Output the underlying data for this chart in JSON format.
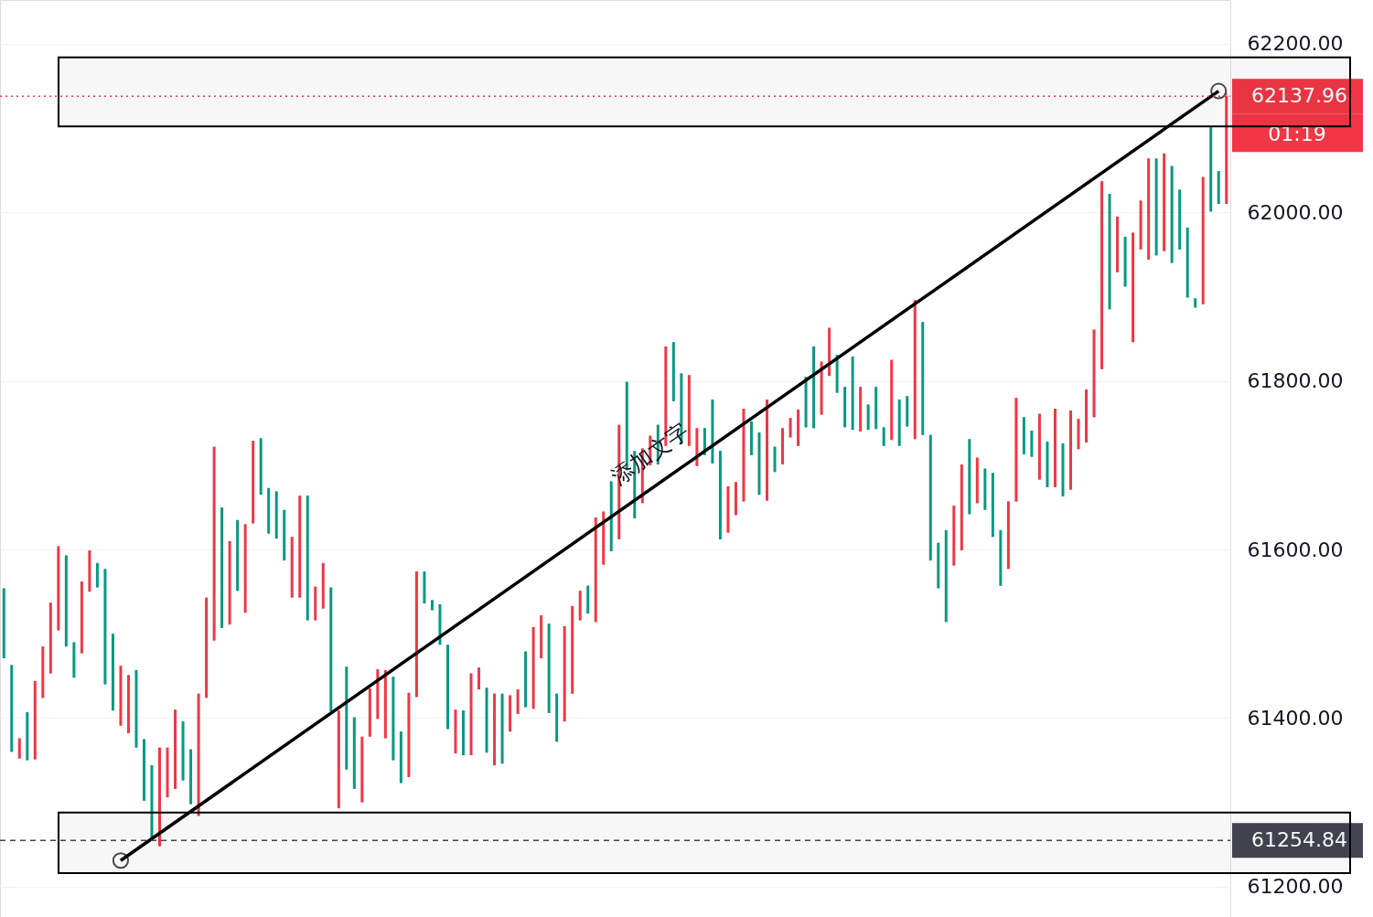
{
  "chart_data": {
    "type": "candlestick",
    "categories": [
      null,
      null,
      null,
      null,
      null,
      null,
      null,
      null,
      null,
      null,
      null,
      null,
      null,
      null,
      null,
      null,
      null,
      null,
      null,
      null,
      null,
      null,
      null,
      null,
      null,
      null,
      null,
      null,
      null,
      null,
      null,
      null,
      null,
      null,
      null,
      null,
      null,
      null,
      null,
      null,
      null,
      null,
      null,
      null,
      null,
      null,
      null,
      null,
      null,
      null,
      null,
      null,
      null,
      null,
      null,
      null,
      null,
      null,
      null,
      null,
      null,
      null,
      null,
      null,
      null,
      null,
      null,
      null,
      null,
      null,
      null,
      null,
      null,
      null,
      null,
      null,
      null,
      null,
      null,
      null,
      null,
      null,
      null,
      null,
      null,
      null,
      null,
      null,
      null,
      null,
      null,
      null,
      null,
      null,
      null,
      null,
      null,
      null,
      null,
      null,
      null,
      null,
      null,
      null,
      null,
      null,
      null,
      null,
      null,
      null,
      null,
      null,
      null,
      null,
      null,
      null,
      null,
      null,
      null,
      null,
      null,
      null,
      null,
      null,
      null,
      null,
      null,
      null,
      null,
      null,
      null,
      null,
      null,
      null,
      null,
      null,
      null,
      null,
      null,
      null,
      null,
      null,
      null,
      null,
      null,
      null,
      null,
      null,
      null,
      null,
      null,
      null,
      null,
      null,
      null,
      null,
      null,
      null
    ],
    "ohlc": [
      [
        61554,
        61554,
        61471,
        61471
      ],
      [
        61463,
        61463,
        61360,
        61360
      ],
      [
        61352,
        61376,
        61352,
        61376
      ],
      [
        61407,
        61407,
        61350,
        61350
      ],
      [
        61351,
        61444,
        61351,
        61444
      ],
      [
        61424,
        61485,
        61424,
        61485
      ],
      [
        61453,
        61537,
        61453,
        61537
      ],
      [
        61504,
        61604,
        61504,
        61604
      ],
      [
        61593,
        61593,
        61485,
        61485
      ],
      [
        61490,
        61490,
        61448,
        61448
      ],
      [
        61477,
        61562,
        61477,
        61562
      ],
      [
        61550,
        61599,
        61550,
        61599
      ],
      [
        61584,
        61584,
        61555,
        61555
      ],
      [
        61577,
        61577,
        61440,
        61440
      ],
      [
        61500,
        61500,
        61409,
        61409
      ],
      [
        61391,
        61462,
        61391,
        61462
      ],
      [
        61382,
        61451,
        61382,
        61451
      ],
      [
        61457,
        61457,
        61365,
        61365
      ],
      [
        61375,
        61375,
        61302,
        61302
      ],
      [
        61344,
        61344,
        61256,
        61256
      ],
      [
        61248,
        61365,
        61248,
        61365
      ],
      [
        61306,
        61365,
        61306,
        61365
      ],
      [
        61316,
        61410,
        61316,
        61410
      ],
      [
        61396,
        61396,
        61326,
        61326
      ],
      [
        61363,
        61363,
        61298,
        61298
      ],
      [
        61284,
        61429,
        61284,
        61429
      ],
      [
        61424,
        61543,
        61424,
        61543
      ],
      [
        61492,
        61722,
        61492,
        61722
      ],
      [
        61650,
        61650,
        61507,
        61507
      ],
      [
        61511,
        61610,
        61511,
        61610
      ],
      [
        61635,
        61635,
        61551,
        61551
      ],
      [
        61525,
        61630,
        61525,
        61630
      ],
      [
        61631,
        61729,
        61631,
        61729
      ],
      [
        61732,
        61732,
        61665,
        61665
      ],
      [
        61673,
        61673,
        61619,
        61619
      ],
      [
        61669,
        61669,
        61613,
        61613
      ],
      [
        61647,
        61647,
        61587,
        61587
      ],
      [
        61543,
        61615,
        61543,
        61615
      ],
      [
        61543,
        61664,
        61543,
        61664
      ],
      [
        61664,
        61664,
        61516,
        61516
      ],
      [
        61516,
        61556,
        61516,
        61556
      ],
      [
        61530,
        61584,
        61530,
        61584
      ],
      [
        61555,
        61555,
        61408,
        61408
      ],
      [
        61293,
        61409,
        61293,
        61409
      ],
      [
        61461,
        61461,
        61339,
        61339
      ],
      [
        61401,
        61401,
        61316,
        61316
      ],
      [
        61300,
        61378,
        61300,
        61378
      ],
      [
        61378,
        61435,
        61378,
        61435
      ],
      [
        61399,
        61458,
        61399,
        61458
      ],
      [
        61376,
        61457,
        61376,
        61457
      ],
      [
        61449,
        61449,
        61350,
        61350
      ],
      [
        61384,
        61384,
        61323,
        61323
      ],
      [
        61330,
        61430,
        61330,
        61430
      ],
      [
        61425,
        61574,
        61425,
        61574
      ],
      [
        61574,
        61574,
        61536,
        61536
      ],
      [
        61540,
        61540,
        61528,
        61528
      ],
      [
        61535,
        61535,
        61487,
        61487
      ],
      [
        61487,
        61487,
        61387,
        61387
      ],
      [
        61358,
        61410,
        61358,
        61410
      ],
      [
        61409,
        61409,
        61356,
        61356
      ],
      [
        61356,
        61453,
        61356,
        61453
      ],
      [
        61434,
        61460,
        61434,
        61460
      ],
      [
        61436,
        61436,
        61359,
        61359
      ],
      [
        61344,
        61429,
        61344,
        61429
      ],
      [
        61429,
        61429,
        61346,
        61346
      ],
      [
        61384,
        61427,
        61384,
        61427
      ],
      [
        61405,
        61434,
        61405,
        61434
      ],
      [
        61479,
        61479,
        61413,
        61413
      ],
      [
        61411,
        61508,
        61411,
        61508
      ],
      [
        61471,
        61522,
        61471,
        61522
      ],
      [
        61512,
        61512,
        61406,
        61406
      ],
      [
        61429,
        61429,
        61372,
        61372
      ],
      [
        61396,
        61509,
        61396,
        61509
      ],
      [
        61429,
        61533,
        61429,
        61533
      ],
      [
        61516,
        61551,
        61516,
        61551
      ],
      [
        61557,
        61557,
        61524,
        61524
      ],
      [
        61514,
        61638,
        61514,
        61638
      ],
      [
        61582,
        61645,
        61582,
        61645
      ],
      [
        61681,
        61681,
        61598,
        61598
      ],
      [
        61612,
        61748,
        61612,
        61748
      ],
      [
        61799,
        61799,
        61694,
        61694
      ],
      [
        61717,
        61717,
        61637,
        61637
      ],
      [
        61655,
        61720,
        61655,
        61720
      ],
      [
        61700,
        61735,
        61700,
        61735
      ],
      [
        61748,
        61748,
        61701,
        61701
      ],
      [
        61723,
        61841,
        61723,
        61841
      ],
      [
        61846,
        61846,
        61776,
        61776
      ],
      [
        61809,
        61809,
        61725,
        61725
      ],
      [
        61723,
        61807,
        61723,
        61807
      ],
      [
        61699,
        61744,
        61699,
        61744
      ],
      [
        61744,
        61744,
        61712,
        61712
      ],
      [
        61778,
        61778,
        61702,
        61702
      ],
      [
        61717,
        61717,
        61612,
        61612
      ],
      [
        61620,
        61675,
        61620,
        61675
      ],
      [
        61641,
        61680,
        61641,
        61680
      ],
      [
        61657,
        61767,
        61657,
        61767
      ],
      [
        61752,
        61752,
        61712,
        61712
      ],
      [
        61739,
        61739,
        61665,
        61665
      ],
      [
        61658,
        61778,
        61658,
        61778
      ],
      [
        61722,
        61722,
        61692,
        61692
      ],
      [
        61701,
        61744,
        61701,
        61744
      ],
      [
        61733,
        61756,
        61733,
        61756
      ],
      [
        61723,
        61766,
        61723,
        61766
      ],
      [
        61805,
        61805,
        61745,
        61745
      ],
      [
        61841,
        61841,
        61744,
        61744
      ],
      [
        61760,
        61823,
        61760,
        61823
      ],
      [
        61806,
        61863,
        61806,
        61863
      ],
      [
        61831,
        61831,
        61786,
        61786
      ],
      [
        61793,
        61793,
        61745,
        61745
      ],
      [
        61829,
        61829,
        61742,
        61742
      ],
      [
        61740,
        61793,
        61740,
        61793
      ],
      [
        61772,
        61772,
        61742,
        61742
      ],
      [
        61793,
        61793,
        61743,
        61743
      ],
      [
        61745,
        61745,
        61723,
        61723
      ],
      [
        61730,
        61825,
        61730,
        61825
      ],
      [
        61778,
        61778,
        61723,
        61723
      ],
      [
        61782,
        61782,
        61746,
        61746
      ],
      [
        61731,
        61896,
        61731,
        61896
      ],
      [
        61870,
        61870,
        61736,
        61736
      ],
      [
        61736,
        61736,
        61587,
        61587
      ],
      [
        61608,
        61608,
        61554,
        61554
      ],
      [
        61623,
        61623,
        61514,
        61514
      ],
      [
        61581,
        61652,
        61581,
        61652
      ],
      [
        61599,
        61701,
        61599,
        61701
      ],
      [
        61731,
        61731,
        61642,
        61642
      ],
      [
        61655,
        61709,
        61655,
        61709
      ],
      [
        61696,
        61696,
        61647,
        61647
      ],
      [
        61691,
        61691,
        61615,
        61615
      ],
      [
        61623,
        61623,
        61557,
        61557
      ],
      [
        61577,
        61657,
        61577,
        61657
      ],
      [
        61657,
        61780,
        61657,
        61780
      ],
      [
        61757,
        61757,
        61713,
        61713
      ],
      [
        61741,
        61741,
        61710,
        61710
      ],
      [
        61683,
        61761,
        61683,
        61761
      ],
      [
        61728,
        61728,
        61674,
        61674
      ],
      [
        61674,
        61767,
        61674,
        61767
      ],
      [
        61726,
        61726,
        61663,
        61663
      ],
      [
        61671,
        61765,
        61671,
        61765
      ],
      [
        61719,
        61755,
        61719,
        61755
      ],
      [
        61727,
        61790,
        61727,
        61790
      ],
      [
        61757,
        61861,
        61757,
        61861
      ],
      [
        61814,
        62037,
        61814,
        62037
      ],
      [
        62022,
        62022,
        61885,
        61885
      ],
      [
        61929,
        61995,
        61929,
        61995
      ],
      [
        61971,
        61971,
        61912,
        61912
      ],
      [
        61846,
        61976,
        61846,
        61976
      ],
      [
        61956,
        62014,
        61956,
        62014
      ],
      [
        61944,
        62064,
        61944,
        62064
      ],
      [
        62064,
        62064,
        61949,
        61949
      ],
      [
        61954,
        62070,
        61954,
        62070
      ],
      [
        62055,
        62055,
        61940,
        61940
      ],
      [
        62027,
        62027,
        61956,
        61956
      ],
      [
        61982,
        61982,
        61899,
        61899
      ],
      [
        61898,
        61898,
        61887,
        61887
      ],
      [
        61891,
        62042,
        61891,
        62042
      ],
      [
        62101,
        62101,
        62001,
        62001
      ],
      [
        62049,
        62049,
        62010,
        62010
      ],
      [
        62010,
        62142,
        62010,
        62137.96
      ]
    ],
    "colors": [
      "#089981",
      "#089981",
      "#f23645",
      "#089981",
      "#f23645",
      "#f23645",
      "#f23645",
      "#f23645",
      "#089981",
      "#089981",
      "#f23645",
      "#f23645",
      "#089981",
      "#089981",
      "#089981",
      "#f23645",
      "#f23645",
      "#089981",
      "#089981",
      "#089981",
      "#f23645",
      "#f23645",
      "#f23645",
      "#089981",
      "#089981",
      "#f23645",
      "#f23645",
      "#f23645",
      "#089981",
      "#f23645",
      "#089981",
      "#f23645",
      "#f23645",
      "#089981",
      "#089981",
      "#089981",
      "#089981",
      "#f23645",
      "#f23645",
      "#089981",
      "#f23645",
      "#f23645",
      "#089981",
      "#f23645",
      "#089981",
      "#089981",
      "#f23645",
      "#f23645",
      "#f23645",
      "#f23645",
      "#089981",
      "#089981",
      "#f23645",
      "#f23645",
      "#089981",
      "#089981",
      "#089981",
      "#089981",
      "#f23645",
      "#089981",
      "#f23645",
      "#f23645",
      "#089981",
      "#f23645",
      "#089981",
      "#f23645",
      "#f23645",
      "#089981",
      "#f23645",
      "#f23645",
      "#089981",
      "#089981",
      "#f23645",
      "#f23645",
      "#f23645",
      "#089981",
      "#f23645",
      "#f23645",
      "#089981",
      "#f23645",
      "#089981",
      "#089981",
      "#f23645",
      "#f23645",
      "#089981",
      "#f23645",
      "#089981",
      "#089981",
      "#f23645",
      "#f23645",
      "#089981",
      "#089981",
      "#089981",
      "#f23645",
      "#f23645",
      "#f23645",
      "#089981",
      "#089981",
      "#f23645",
      "#089981",
      "#f23645",
      "#f23645",
      "#f23645",
      "#089981",
      "#089981",
      "#f23645",
      "#f23645",
      "#089981",
      "#089981",
      "#089981",
      "#f23645",
      "#089981",
      "#089981",
      "#089981",
      "#f23645",
      "#089981",
      "#089981",
      "#f23645",
      "#089981",
      "#089981",
      "#089981",
      "#089981",
      "#f23645",
      "#f23645",
      "#089981",
      "#f23645",
      "#089981",
      "#089981",
      "#089981",
      "#f23645",
      "#f23645",
      "#089981",
      "#089981",
      "#f23645",
      "#089981",
      "#f23645",
      "#089981",
      "#f23645",
      "#f23645",
      "#f23645",
      "#f23645",
      "#f23645",
      "#089981",
      "#f23645",
      "#089981",
      "#f23645",
      "#f23645",
      "#f23645",
      "#089981",
      "#f23645",
      "#089981",
      "#089981",
      "#089981",
      "#089981",
      "#f23645",
      "#089981",
      "#089981",
      "#f23645"
    ],
    "series": [
      {
        "type": "line",
        "color": "#000000",
        "values": [
          null,
          null,
          null,
          null,
          null,
          null,
          null,
          null,
          null,
          null,
          null,
          null,
          null,
          null,
          null,
          61231,
          null,
          null,
          null,
          null,
          null,
          null,
          null,
          null,
          null,
          null,
          null,
          null,
          null,
          null,
          null,
          null,
          null,
          null,
          null,
          null,
          null,
          null,
          null,
          null,
          null,
          null,
          null,
          null,
          null,
          null,
          null,
          null,
          null,
          null,
          null,
          null,
          null,
          null,
          null,
          null,
          null,
          null,
          null,
          null,
          null,
          null,
          null,
          null,
          null,
          null,
          null,
          null,
          null,
          null,
          null,
          null,
          null,
          null,
          null,
          null,
          null,
          null,
          null,
          null,
          null,
          null,
          null,
          null,
          null,
          null,
          null,
          null,
          null,
          null,
          null,
          null,
          null,
          null,
          null,
          null,
          null,
          null,
          null,
          null,
          null,
          null,
          null,
          null,
          null,
          null,
          null,
          null,
          null,
          null,
          null,
          null,
          null,
          null,
          null,
          null,
          null,
          null,
          null,
          null,
          null,
          null,
          null,
          null,
          null,
          null,
          null,
          null,
          null,
          null,
          null,
          null,
          null,
          null,
          null,
          null,
          null,
          null,
          null,
          null,
          null,
          null,
          null,
          null,
          null,
          null,
          null,
          null,
          null,
          null,
          null,
          null,
          null,
          null,
          null,
          null,
          62144,
          null
        ]
      }
    ],
    "marker": "circle",
    "ylim": [
      61164,
      62252
    ],
    "yticks": [
      {
        "value": 61200,
        "label": "61200.00"
      },
      {
        "value": 61400,
        "label": "61400.00"
      },
      {
        "value": 61600,
        "label": "61600.00"
      },
      {
        "value": 61800,
        "label": "61800.00"
      },
      {
        "value": 62000,
        "label": "62000.00"
      },
      {
        "value": 62200,
        "label": "62200.00"
      }
    ],
    "grid": "y",
    "tick_labels": "y",
    "ref_lines": [
      {
        "axis": "y",
        "value": 62137.96,
        "label": "62137.96",
        "color": "#f23645",
        "line_style": "dotted"
      },
      {
        "axis": "y",
        "value": 61254.84,
        "label": "61254.84",
        "color": "#434651",
        "line_style": "dashed"
      }
    ],
    "bands": [
      {
        "axis": "y",
        "from": 62102,
        "to": 62184,
        "color": "#000000"
      },
      {
        "axis": "y",
        "from": 61216,
        "to": 61288,
        "color": "#000000"
      }
    ],
    "annotations": [
      "添加文字",
      "01:19"
    ]
  }
}
